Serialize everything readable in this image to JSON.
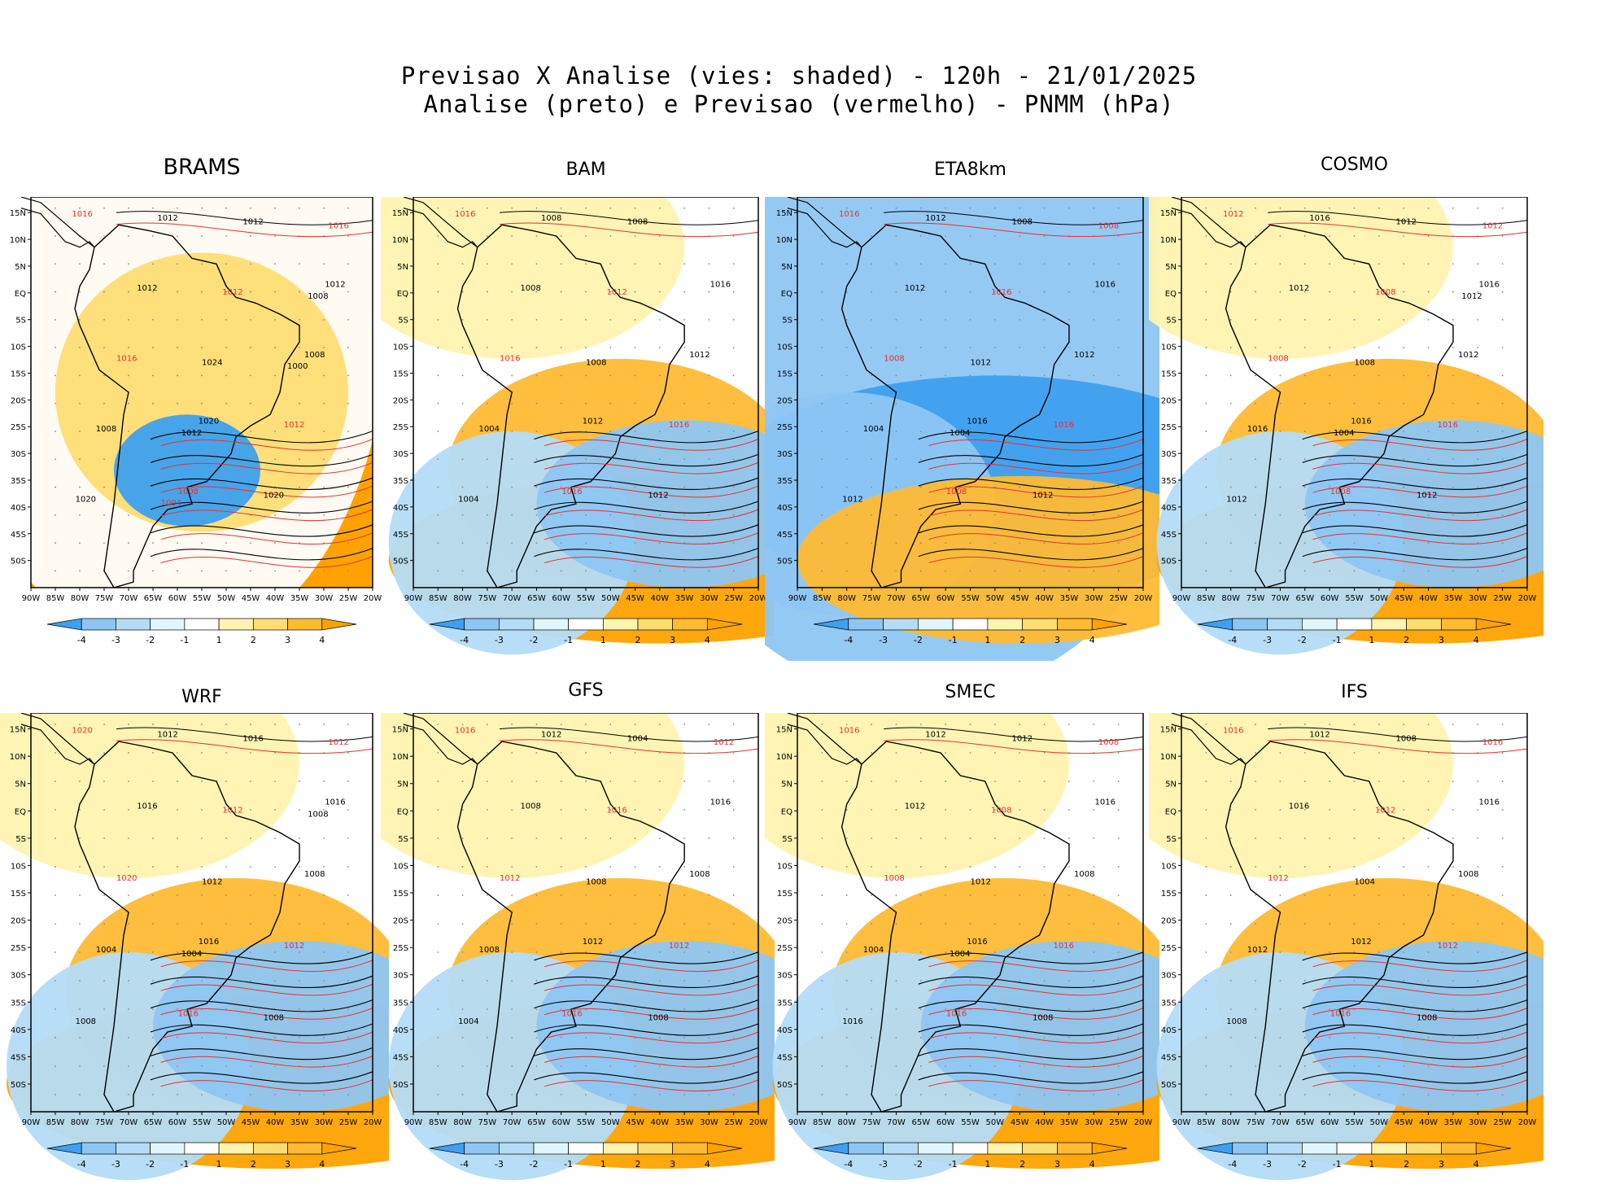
{
  "header": {
    "line1": "Previsao X Analise (vies: shaded) - 120h - 21/01/2025",
    "line2": "Analise (preto) e Previsao (vermelho) - PNMM (hPa)"
  },
  "panels": [
    {
      "name": "BRAMS",
      "big": true,
      "bias": "warm",
      "labels": [
        "1016",
        "1020",
        "1012",
        "1008",
        "1008",
        "1012",
        "1012",
        "1012",
        "1020",
        "1016",
        "1012",
        "1008",
        "1012",
        "1020",
        "1024",
        "1016",
        "1012",
        "1008",
        "1004",
        "1000"
      ]
    },
    {
      "name": "BAM",
      "big": false,
      "bias": "mixed",
      "labels": [
        "1016",
        "1012",
        "1016",
        "1016",
        "1012",
        "1008",
        "1016",
        "1008",
        "1012",
        "1016",
        "1008",
        "1004",
        "1012",
        "1004",
        "1008"
      ]
    },
    {
      "name": "ETA8km",
      "big": false,
      "bias": "cold",
      "labels": [
        "1016",
        "1016",
        "1016",
        "1008",
        "1012",
        "1012",
        "1016",
        "1012",
        "1012",
        "1008",
        "1008",
        "1004",
        "1016",
        "1012",
        "1012",
        "1008",
        "1004"
      ]
    },
    {
      "name": "COSMO",
      "big": false,
      "bias": "mixed",
      "labels": [
        "1012",
        "1016",
        "1016",
        "1008",
        "1012",
        "1016",
        "1016",
        "1012",
        "1012",
        "1008",
        "1012",
        "1016",
        "1008",
        "1012",
        "1008",
        "1012",
        "1004",
        "1012"
      ]
    },
    {
      "name": "WRF",
      "big": false,
      "bias": "mixed",
      "labels": [
        "1020",
        "1016",
        "1016",
        "1016",
        "1008",
        "1012",
        "1012",
        "1016",
        "1008",
        "1020",
        "1016",
        "1004",
        "1012",
        "1008",
        "1012",
        "1012",
        "1004",
        "1008"
      ]
    },
    {
      "name": "GFS",
      "big": false,
      "bias": "mixed",
      "labels": [
        "1016",
        "1012",
        "1016",
        "1016",
        "1008",
        "1012",
        "1012",
        "1008",
        "1008",
        "1012",
        "1004",
        "1008",
        "1016",
        "1004",
        "1008",
        "1012"
      ]
    },
    {
      "name": "SMEC",
      "big": false,
      "bias": "mixed",
      "labels": [
        "1016",
        "1016",
        "1016",
        "1016",
        "1008",
        "1012",
        "1016",
        "1012",
        "1008",
        "1008",
        "1012",
        "1004",
        "1008",
        "1016",
        "1012",
        "1008",
        "1004"
      ]
    },
    {
      "name": "IFS",
      "big": false,
      "bias": "mixed",
      "labels": [
        "1016",
        "1012",
        "1016",
        "1016",
        "1008",
        "1012",
        "1012",
        "1016",
        "1008",
        "1012",
        "1008",
        "1012",
        "1012",
        "1008",
        "1004",
        "1016"
      ]
    }
  ],
  "axes": {
    "lat_labels": [
      "15N",
      "10N",
      "5N",
      "EQ",
      "5S",
      "10S",
      "15S",
      "20S",
      "25S",
      "30S",
      "35S",
      "40S",
      "45S",
      "50S"
    ],
    "lon_labels": [
      "90W",
      "85W",
      "80W",
      "75W",
      "70W",
      "65W",
      "60W",
      "55W",
      "50W",
      "45W",
      "40W",
      "35W",
      "30W",
      "25W",
      "20W"
    ]
  },
  "colorbar": {
    "labels": [
      "-4",
      "-3",
      "-2",
      "-1",
      "1",
      "2",
      "3",
      "4"
    ],
    "colors": [
      "#3ea0ef",
      "#8ec6f3",
      "#b4dcf7",
      "#dff6ff",
      "#ffffff",
      "#fff3b0",
      "#ffdd73",
      "#ffbb33",
      "#ffa200"
    ]
  },
  "contour_colors": {
    "analysis": "#000000",
    "forecast": "#e8312e"
  }
}
